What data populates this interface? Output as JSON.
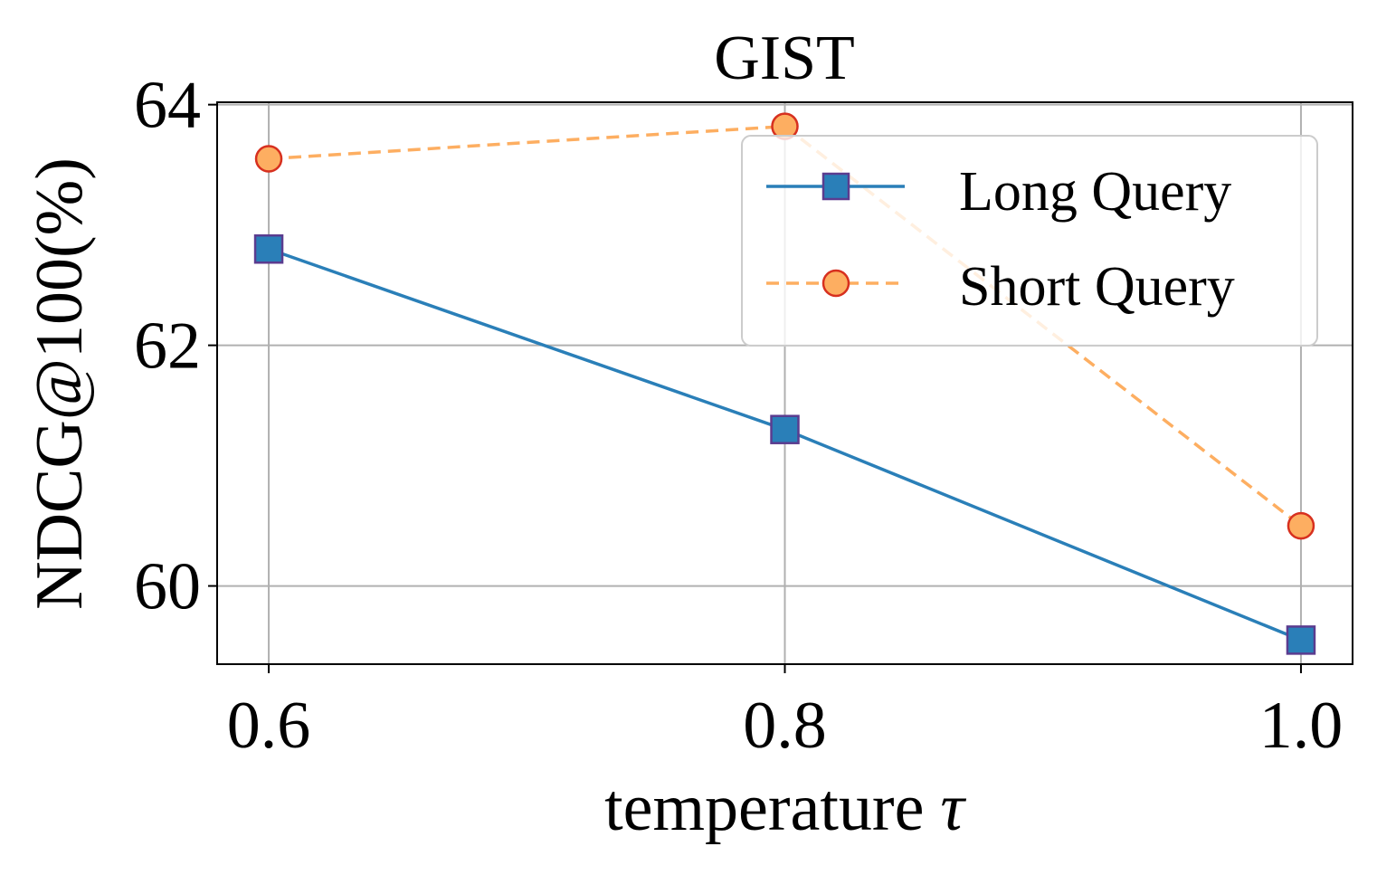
{
  "chart_data": {
    "type": "line",
    "title": "GIST",
    "xlabel": "temperature",
    "xlabel_symbol": "τ",
    "ylabel": "NDCG@100(%)",
    "x": [
      0.6,
      0.8,
      1.0
    ],
    "x_tick_labels": [
      "0.6",
      "0.8",
      "1.0"
    ],
    "y_ticks": [
      60,
      62,
      64
    ],
    "y_tick_labels": [
      "60",
      "62",
      "64"
    ],
    "xlim": [
      0.58,
      1.02
    ],
    "ylim": [
      59.35,
      64.02
    ],
    "grid": true,
    "legend_position": "top-right",
    "series": [
      {
        "name": "Long Query",
        "values": [
          62.8,
          61.3,
          59.55
        ],
        "color": "#2a7fb8",
        "marker": "square",
        "marker_edge": "#5b3c8f",
        "line_style": "solid"
      },
      {
        "name": "Short Query",
        "values": [
          63.55,
          63.82,
          60.5
        ],
        "color": "#fdae61",
        "marker": "circle",
        "marker_edge": "#d7301f",
        "line_style": "dashed"
      }
    ]
  }
}
